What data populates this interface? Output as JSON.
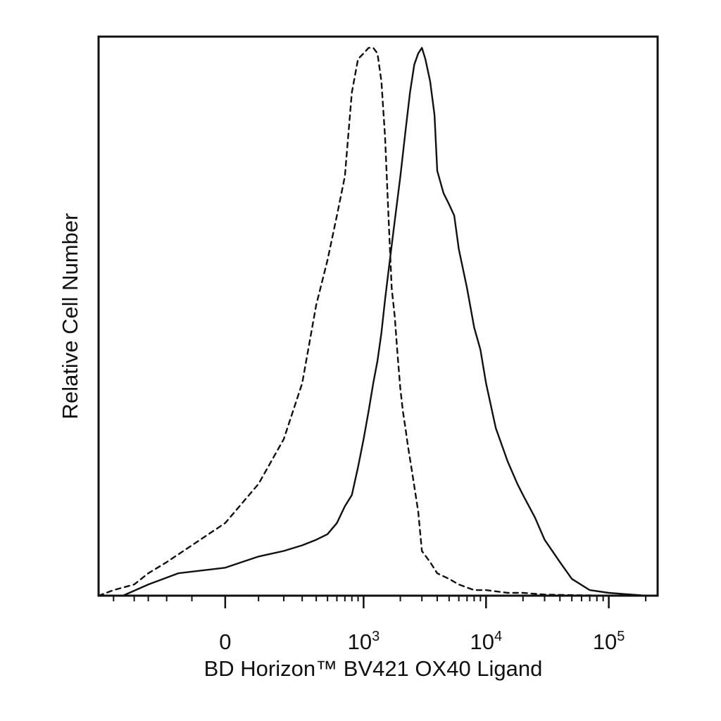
{
  "chart_data": {
    "type": "line",
    "xlabel": "BD Horizon™ BV421 OX40 Ligand",
    "ylabel": "Relative Cell Number",
    "x_scale": "biexponential",
    "xlim": [
      -800,
      250000
    ],
    "ylim": [
      0,
      1.0
    ],
    "grid": false,
    "legend": "none",
    "x_ticks": [
      {
        "value": 0,
        "base": "0",
        "exp": ""
      },
      {
        "value": 1000,
        "base": "10",
        "exp": "3"
      },
      {
        "value": 10000,
        "base": "10",
        "exp": "4"
      },
      {
        "value": 100000,
        "base": "10",
        "exp": "5"
      }
    ],
    "series": [
      {
        "style": "dashed",
        "color": "#111111",
        "x": [
          -800,
          -600,
          -400,
          -300,
          -200,
          -100,
          0,
          100,
          200,
          300,
          400,
          500,
          600,
          700,
          800,
          900,
          1000,
          1100,
          1200,
          1300,
          1400,
          1500,
          1600,
          1700,
          1800,
          1900,
          2000,
          2100,
          2200,
          2300,
          2500,
          2800,
          3000,
          3500,
          4000,
          5000,
          6000,
          8000,
          10000,
          15000,
          20000,
          30000,
          50000,
          100000,
          200000
        ],
        "y": [
          0.0,
          0.01,
          0.02,
          0.04,
          0.06,
          0.09,
          0.13,
          0.2,
          0.28,
          0.38,
          0.52,
          0.6,
          0.68,
          0.75,
          0.9,
          0.96,
          0.97,
          0.98,
          0.98,
          0.97,
          0.92,
          0.82,
          0.68,
          0.55,
          0.5,
          0.43,
          0.37,
          0.33,
          0.3,
          0.27,
          0.22,
          0.15,
          0.08,
          0.06,
          0.04,
          0.03,
          0.02,
          0.01,
          0.01,
          0.005,
          0.005,
          0.002,
          0.001,
          0.0,
          0.0
        ]
      },
      {
        "style": "solid",
        "color": "#111111",
        "x": [
          -800,
          -500,
          -300,
          -150,
          0,
          100,
          200,
          300,
          400,
          500,
          600,
          700,
          800,
          900,
          1000,
          1100,
          1200,
          1300,
          1400,
          1500,
          1600,
          1800,
          2000,
          2200,
          2400,
          2600,
          2800,
          3000,
          3200,
          3500,
          3800,
          4000,
          4500,
          5000,
          5500,
          6000,
          7000,
          8000,
          9000,
          10000,
          12000,
          15000,
          18000,
          20000,
          25000,
          30000,
          40000,
          50000,
          70000,
          100000,
          200000
        ],
        "y": [
          0.0,
          0.0,
          0.02,
          0.04,
          0.05,
          0.07,
          0.08,
          0.09,
          0.1,
          0.11,
          0.13,
          0.16,
          0.18,
          0.23,
          0.28,
          0.33,
          0.38,
          0.42,
          0.47,
          0.53,
          0.58,
          0.67,
          0.75,
          0.83,
          0.9,
          0.95,
          0.97,
          0.98,
          0.96,
          0.92,
          0.86,
          0.76,
          0.72,
          0.7,
          0.68,
          0.62,
          0.55,
          0.48,
          0.44,
          0.38,
          0.3,
          0.24,
          0.2,
          0.18,
          0.14,
          0.1,
          0.06,
          0.03,
          0.01,
          0.005,
          0.0
        ]
      }
    ]
  }
}
